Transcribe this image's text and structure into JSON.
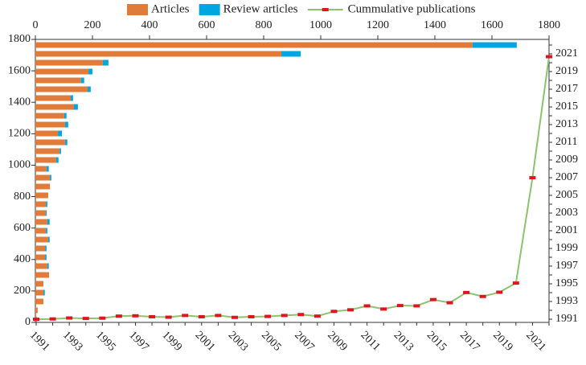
{
  "chart_data": {
    "type": "bar",
    "categories": [
      "1991",
      null,
      "1993",
      null,
      "1995",
      null,
      "1997",
      null,
      "1999",
      null,
      "2001",
      null,
      "2003",
      null,
      "2005",
      null,
      "2007",
      null,
      "2009",
      null,
      "2011",
      null,
      "2013",
      null,
      "2015",
      null,
      "2017",
      null,
      "2019",
      null,
      "2021",
      null
    ],
    "series": [
      {
        "name": "Articles",
        "color": "#e07b39",
        "values": [
          5,
          8,
          28,
          28,
          28,
          48,
          42,
          34,
          34,
          45,
          37,
          42,
          37,
          37,
          45,
          51,
          51,
          39,
          73,
          85,
          104,
          79,
          104,
          101,
          135,
          124,
          183,
          160,
          186,
          236,
          862,
          1532
        ]
      },
      {
        "name": "Review articles",
        "color": "#00a6e0",
        "values": [
          0,
          0,
          0,
          5,
          0,
          0,
          5,
          5,
          5,
          5,
          5,
          8,
          3,
          5,
          0,
          0,
          5,
          8,
          8,
          5,
          8,
          14,
          11,
          8,
          14,
          8,
          11,
          11,
          14,
          20,
          68,
          155
        ]
      },
      {
        "name": "Cummulative publications",
        "type": "line",
        "color": "#8dc26f",
        "marker_color": "#e0141e",
        "values": [
          20,
          22,
          28,
          25,
          27,
          40,
          42,
          36,
          33,
          44,
          36,
          44,
          32,
          36,
          38,
          44,
          50,
          40,
          70,
          80,
          105,
          85,
          107,
          105,
          145,
          125,
          190,
          165,
          192,
          250,
          920,
          1690
        ]
      }
    ],
    "xlim": [
      0,
      1800
    ],
    "xticks": [
      0,
      200,
      400,
      600,
      800,
      1000,
      1200,
      1400,
      1600,
      1800
    ],
    "ylim": [
      0,
      1800
    ],
    "yticks": [
      0,
      200,
      400,
      600,
      800,
      1000,
      1200,
      1400,
      1600,
      1800
    ]
  }
}
